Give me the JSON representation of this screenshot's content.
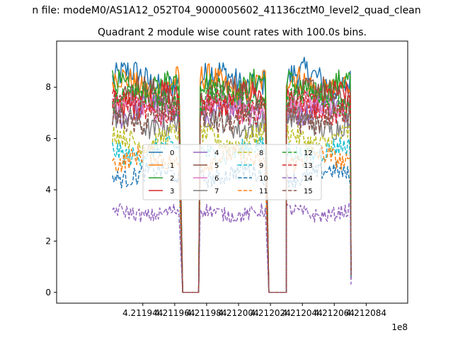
{
  "figure": {
    "suptitle": "n file: modeM0/AS1A12_052T04_9000005602_41136cztM0_level2_quad_clean",
    "offset_label": "1e8"
  },
  "chart_data": {
    "type": "line",
    "title": "Quadrant 2 module wise count rates with 100.0s bins.",
    "xlabel": "",
    "ylabel": "",
    "x_offset_multiplier": 100000000,
    "xlim": [
      4.21189,
      4.21211
    ],
    "ylim": [
      -0.42,
      9.8
    ],
    "x_ticks": [
      4.211944,
      4.211964,
      4.211984,
      4.212004,
      4.212024,
      4.212044,
      4.212064,
      4.212084
    ],
    "x_tick_labels": [
      "4.211944",
      "4.211964",
      "4.211984",
      "4.212004",
      "4.212024",
      "4.212044",
      "4.212064",
      "4.212084"
    ],
    "y_ticks": [
      0,
      2,
      4,
      6,
      8
    ],
    "y_tick_labels": [
      "0",
      "2",
      "4",
      "6",
      "8"
    ],
    "grid": false,
    "legend": {
      "placement": "center",
      "ncol": 4
    },
    "segments": [
      {
        "x_start": 4.211925,
        "x_end": 4.211967
      },
      {
        "x_start": 4.21198,
        "x_end": 4.212021
      },
      {
        "x_start": 4.212034,
        "x_end": 4.212074
      }
    ],
    "gaps": [
      {
        "x_start": 4.211969,
        "x_end": 4.211979,
        "value": 0
      },
      {
        "x_start": 4.212023,
        "x_end": 4.212034,
        "value": 0
      }
    ],
    "series": [
      {
        "name": "0",
        "color": "#1f77b4",
        "dash": "solid",
        "level": 8.3
      },
      {
        "name": "1",
        "color": "#ff7f0e",
        "dash": "solid",
        "level": 8.1
      },
      {
        "name": "2",
        "color": "#2ca02c",
        "dash": "solid",
        "level": 8.0
      },
      {
        "name": "3",
        "color": "#d62728",
        "dash": "solid",
        "level": 7.5
      },
      {
        "name": "4",
        "color": "#9467bd",
        "dash": "solid",
        "level": 7.1
      },
      {
        "name": "5",
        "color": "#8c564b",
        "dash": "solid",
        "level": 7.7
      },
      {
        "name": "6",
        "color": "#e377c2",
        "dash": "solid",
        "level": 7.2
      },
      {
        "name": "7",
        "color": "#7f7f7f",
        "dash": "solid",
        "level": 6.6
      },
      {
        "name": "8",
        "color": "#bcbd22",
        "dash": "dashed",
        "level": 6.0
      },
      {
        "name": "9",
        "color": "#17becf",
        "dash": "dashed",
        "level": 5.5
      },
      {
        "name": "10",
        "color": "#1f77b4",
        "dash": "dashed",
        "level": 4.6
      },
      {
        "name": "11",
        "color": "#ff7f0e",
        "dash": "dashed",
        "level": 5.2
      },
      {
        "name": "12",
        "color": "#2ca02c",
        "dash": "dashed",
        "level": 7.6
      },
      {
        "name": "13",
        "color": "#d62728",
        "dash": "dashed",
        "level": 7.2
      },
      {
        "name": "14",
        "color": "#9467bd",
        "dash": "dashed",
        "level": 3.1
      },
      {
        "name": "15",
        "color": "#8c564b",
        "dash": "dashed",
        "level": 6.8
      }
    ]
  }
}
